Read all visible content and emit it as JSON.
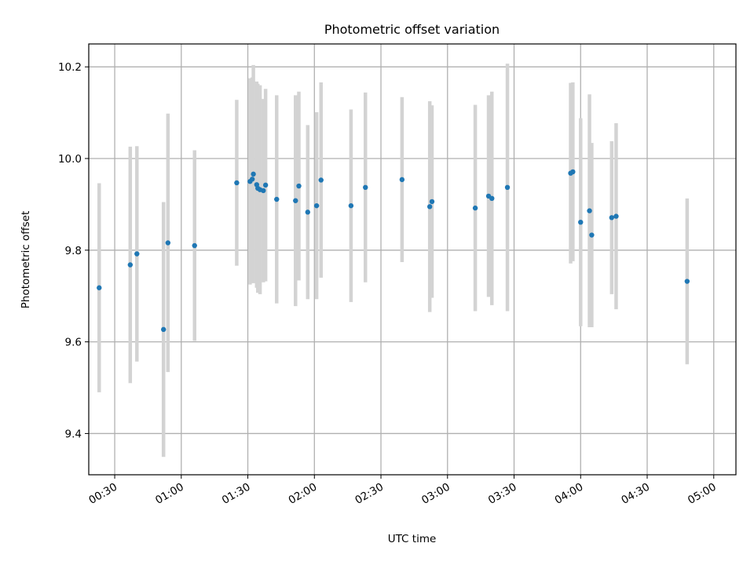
{
  "chart_data": {
    "type": "scatter",
    "title": "Photometric offset variation",
    "xlabel": "UTC time",
    "ylabel": "Photometric offset",
    "xlim_minutes": [
      18.3,
      310.0
    ],
    "ylim": [
      9.31,
      10.25
    ],
    "x_ticks": [
      "00:30",
      "01:00",
      "01:30",
      "02:00",
      "02:30",
      "03:00",
      "03:30",
      "04:00",
      "04:30",
      "05:00"
    ],
    "y_ticks": [
      "9.4",
      "9.6",
      "9.8",
      "10.0",
      "10.2"
    ],
    "grid": true,
    "marker_color": "#1f77b4",
    "errorbar_color": "#d3d3d3",
    "points": [
      {
        "t": "00:23",
        "y": 9.718,
        "err": 0.228
      },
      {
        "t": "00:37",
        "y": 9.768,
        "err": 0.258
      },
      {
        "t": "00:40",
        "y": 9.792,
        "err": 0.235
      },
      {
        "t": "00:52",
        "y": 9.627,
        "err": 0.278
      },
      {
        "t": "00:54",
        "y": 9.816,
        "err": 0.282
      },
      {
        "t": "01:06",
        "y": 9.81,
        "err": 0.208
      },
      {
        "t": "01:25",
        "y": 9.947,
        "err": 0.181
      },
      {
        "t": "01:31",
        "y": 9.95,
        "err": 0.225
      },
      {
        "t": "01:32",
        "y": 9.955,
        "err": 0.222
      },
      {
        "t": "01:32.5",
        "y": 9.966,
        "err": 0.238
      },
      {
        "t": "01:34",
        "y": 9.943,
        "err": 0.225
      },
      {
        "t": "01:34.5",
        "y": 9.935,
        "err": 0.228
      },
      {
        "t": "01:35.5",
        "y": 9.932,
        "err": 0.228
      },
      {
        "t": "01:37",
        "y": 9.93,
        "err": 0.2
      },
      {
        "t": "01:38",
        "y": 9.942,
        "err": 0.21
      },
      {
        "t": "01:43",
        "y": 9.911,
        "err": 0.227
      },
      {
        "t": "01:51.5",
        "y": 9.908,
        "err": 0.23
      },
      {
        "t": "01:53",
        "y": 9.94,
        "err": 0.206
      },
      {
        "t": "01:57",
        "y": 9.883,
        "err": 0.19
      },
      {
        "t": "02:01",
        "y": 9.897,
        "err": 0.204
      },
      {
        "t": "02:03",
        "y": 9.953,
        "err": 0.213
      },
      {
        "t": "02:16.5",
        "y": 9.897,
        "err": 0.21
      },
      {
        "t": "02:23",
        "y": 9.937,
        "err": 0.207
      },
      {
        "t": "02:39.5",
        "y": 9.954,
        "err": 0.18
      },
      {
        "t": "02:52",
        "y": 9.895,
        "err": 0.23
      },
      {
        "t": "02:53",
        "y": 9.906,
        "err": 0.21
      },
      {
        "t": "03:12.5",
        "y": 9.892,
        "err": 0.225
      },
      {
        "t": "03:18.5",
        "y": 9.918,
        "err": 0.22
      },
      {
        "t": "03:20",
        "y": 9.913,
        "err": 0.233
      },
      {
        "t": "03:27",
        "y": 9.937,
        "err": 0.27
      },
      {
        "t": "03:55.5",
        "y": 9.968,
        "err": 0.197
      },
      {
        "t": "03:56.5",
        "y": 9.971,
        "err": 0.195
      },
      {
        "t": "04:00",
        "y": 9.861,
        "err": 0.227
      },
      {
        "t": "04:04",
        "y": 9.886,
        "err": 0.254
      },
      {
        "t": "04:05",
        "y": 9.833,
        "err": 0.201
      },
      {
        "t": "04:14",
        "y": 9.871,
        "err": 0.167
      },
      {
        "t": "04:16",
        "y": 9.874,
        "err": 0.203
      },
      {
        "t": "04:48",
        "y": 9.732,
        "err": 0.181
      }
    ]
  }
}
